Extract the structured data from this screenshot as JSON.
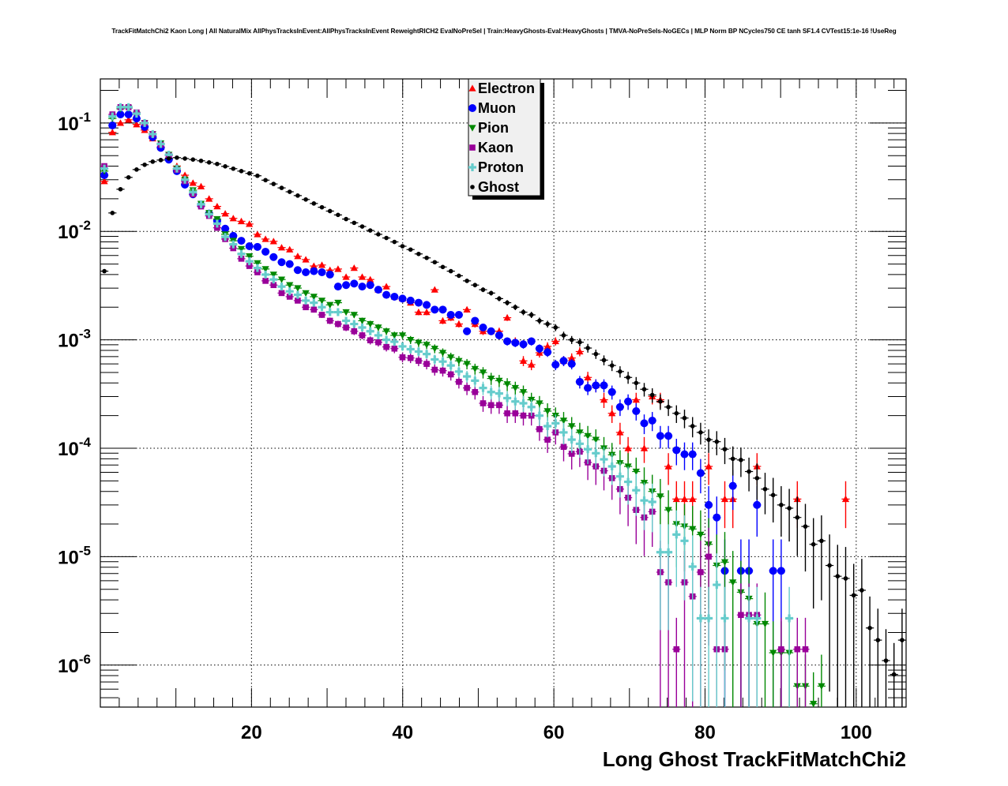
{
  "title": "TrackFitMatchChi2 Kaon Long | All NaturalMix AllPhysTracksInEvent:AllPhysTracksInEvent ReweightRICH2 EvalNoPreSel | Train:HeavyGhosts-Eval:HeavyGhosts | TMVA-NoPreSels-NoGECs | MLP Norm BP NCycles750 CE tanh SF1.4 CVTest15:1e-16 !UseReg",
  "chart_data": {
    "type": "scatter",
    "title": "TrackFitMatchChi2 Kaon Long | All NaturalMix AllPhysTracksInEvent:AllPhysTracksInEvent ReweightRICH2 EvalNoPreSel | Train:HeavyGhosts-Eval:HeavyGhosts | TMVA-NoPreSels-NoGECs | MLP Norm BP NCycles750 CE tanh SF1.4 CVTest15:1e-16 !UseReg",
    "xlabel": "Long Ghost TrackFitMatchChi2",
    "ylabel": "",
    "xlim": [
      0,
      106.6
    ],
    "ylim": [
      4.1e-07,
      0.255
    ],
    "yscale": "log",
    "bin_width": 1.066,
    "grid": true,
    "legend_position": "top-center",
    "x_ticks": [
      "20",
      "40",
      "60",
      "80",
      "100"
    ],
    "x_tick_values": [
      20,
      40,
      60,
      80,
      100
    ],
    "y_ticks": [
      {
        "value": 0.1,
        "base": "10",
        "exp": "-1"
      },
      {
        "value": 0.01,
        "base": "10",
        "exp": "-2"
      },
      {
        "value": 0.001,
        "base": "10",
        "exp": "-3"
      },
      {
        "value": 0.0001,
        "base": "10",
        "exp": "-4"
      },
      {
        "value": 1e-05,
        "base": "10",
        "exp": "-5"
      },
      {
        "value": 1e-06,
        "base": "10",
        "exp": "-6"
      }
    ],
    "series": [
      {
        "name": "Electron",
        "color": "#ff0000",
        "marker": "triangle-up",
        "values": [
          0.029,
          0.082,
          0.1,
          0.107,
          0.097,
          0.086,
          0.072,
          0.06,
          0.051,
          0.04,
          0.033,
          0.028,
          0.026,
          0.02,
          0.017,
          0.0146,
          0.0132,
          0.0124,
          0.0117,
          0.0094,
          0.0085,
          0.0081,
          0.0071,
          0.0068,
          0.0059,
          0.0055,
          0.0048,
          0.0049,
          0.0044,
          0.0045,
          0.0038,
          0.0046,
          0.0038,
          0.0036,
          0.0029,
          0.0031,
          0.0025,
          0.0024,
          0.0022,
          0.0018,
          0.0018,
          0.0029,
          0.0015,
          0.0016,
          0.0014,
          0.0019,
          0.0014,
          0.0012,
          0.0012,
          0.0012,
          0.0016,
          0.00097,
          0.00064,
          0.00059,
          0.00076,
          0.00087,
          0.00097,
          0.00064,
          0.00068,
          0.00078,
          0.00045,
          0.00038,
          0.00028,
          0.00021,
          0.00014,
          0.0001,
          0.00028,
          0.0001,
          0.0003,
          0.00028,
          6.8e-05,
          3.4e-05,
          3.4e-05,
          3.4e-05,
          null,
          6.8e-05,
          null,
          3.4e-05,
          3.4e-05,
          null,
          null,
          6.8e-05,
          null,
          null,
          null,
          null,
          3.4e-05,
          null,
          null,
          null,
          null,
          null,
          3.4e-05,
          null,
          null,
          null,
          null,
          null,
          null,
          null
        ]
      },
      {
        "name": "Muon",
        "color": "#0000ff",
        "marker": "circle",
        "values": [
          0.033,
          0.095,
          0.12,
          0.12,
          0.11,
          0.092,
          0.074,
          0.059,
          0.046,
          0.036,
          0.027,
          0.022,
          0.0175,
          0.0146,
          0.0125,
          0.0106,
          0.0091,
          0.0082,
          0.0073,
          0.0072,
          0.0065,
          0.0058,
          0.0052,
          0.005,
          0.0044,
          0.0042,
          0.0043,
          0.0042,
          0.004,
          0.0031,
          0.0032,
          0.0033,
          0.0031,
          0.0032,
          0.0029,
          0.0026,
          0.0025,
          0.0024,
          0.0023,
          0.0022,
          0.0021,
          0.0019,
          0.0019,
          0.0017,
          0.0017,
          0.0012,
          0.0015,
          0.0013,
          0.0012,
          0.0011,
          0.00097,
          0.00094,
          0.00091,
          0.00097,
          0.00083,
          0.00077,
          0.00059,
          0.00064,
          0.0006,
          0.00041,
          0.00036,
          0.00038,
          0.00038,
          0.00033,
          0.00024,
          0.00027,
          0.00022,
          0.00017,
          0.00018,
          0.00013,
          0.00013,
          9.6e-05,
          8.8e-05,
          8.8e-05,
          5.9e-05,
          3e-05,
          2.3e-05,
          7.4e-06,
          4.5e-05,
          7.4e-06,
          7.4e-06,
          3e-05,
          null,
          7.4e-06,
          7.4e-06,
          null,
          null,
          null,
          null,
          null,
          null,
          null,
          null,
          null,
          null,
          null,
          null,
          null,
          null,
          null
        ]
      },
      {
        "name": "Pion",
        "color": "#008800",
        "marker": "triangle-down",
        "values": [
          0.036,
          0.11,
          0.135,
          0.137,
          0.12,
          0.1,
          0.079,
          0.065,
          0.051,
          0.038,
          0.03,
          0.024,
          0.018,
          0.0148,
          0.013,
          0.0094,
          0.0082,
          0.0069,
          0.0059,
          0.0051,
          0.0045,
          0.004,
          0.0036,
          0.0032,
          0.003,
          0.0027,
          0.0025,
          0.0023,
          0.0021,
          0.0022,
          0.0018,
          0.0017,
          0.0015,
          0.0014,
          0.0013,
          0.0012,
          0.0011,
          0.0011,
          0.001,
          0.00094,
          0.0009,
          0.00083,
          0.00076,
          0.00069,
          0.00064,
          0.0006,
          0.00054,
          0.0005,
          0.00044,
          0.00042,
          0.00039,
          0.00036,
          0.00033,
          0.00028,
          0.00026,
          0.00022,
          0.0002,
          0.00018,
          0.00016,
          0.00014,
          0.00013,
          0.00012,
          0.0001,
          8.7e-05,
          7.3e-05,
          6.8e-05,
          6.1e-05,
          4.8e-05,
          4e-05,
          3.6e-05,
          2.7e-05,
          2e-05,
          1.9e-05,
          1.8e-05,
          1.6e-05,
          1.3e-05,
          8.3e-06,
          8.9e-06,
          5.8e-06,
          4.7e-06,
          4.1e-06,
          2.4e-06,
          2.4e-06,
          1.3e-06,
          1.3e-06,
          1.3e-06,
          6.4e-07,
          6.4e-07,
          4.4e-07,
          6.4e-07,
          null,
          null,
          null,
          null,
          null,
          null,
          null,
          null,
          null,
          null
        ]
      },
      {
        "name": "Kaon",
        "color": "#990099",
        "marker": "square",
        "values": [
          0.04,
          0.12,
          0.14,
          0.14,
          0.125,
          0.1,
          0.079,
          0.063,
          0.05,
          0.037,
          0.029,
          0.022,
          0.017,
          0.0139,
          0.0108,
          0.0085,
          0.007,
          0.0056,
          0.0048,
          0.0042,
          0.0035,
          0.0032,
          0.0027,
          0.0025,
          0.0023,
          0.002,
          0.0019,
          0.0017,
          0.0015,
          0.0014,
          0.0013,
          0.0012,
          0.0011,
          0.00099,
          0.00095,
          0.00086,
          0.00083,
          0.00069,
          0.00068,
          0.00064,
          0.0006,
          0.00053,
          0.00052,
          0.00048,
          0.00041,
          0.00036,
          0.00033,
          0.00026,
          0.00025,
          0.00025,
          0.00021,
          0.00021,
          0.0002,
          0.0002,
          0.00015,
          0.00012,
          0.00014,
          0.000103,
          8.9e-05,
          9.3e-05,
          7.4e-05,
          6.8e-05,
          6.2e-05,
          5.3e-05,
          4.2e-05,
          3.5e-05,
          2.7e-05,
          2.3e-05,
          2.6e-05,
          7.2e-06,
          5.8e-06,
          1.4e-06,
          5.8e-06,
          4.3e-06,
          7.2e-06,
          1e-05,
          1.4e-06,
          1.4e-06,
          null,
          2.9e-06,
          2.9e-06,
          2.9e-06,
          null,
          null,
          1.4e-06,
          null,
          1.4e-06,
          1.4e-06,
          null,
          null,
          null,
          null,
          null,
          null,
          null,
          null,
          null,
          null,
          null,
          null
        ]
      },
      {
        "name": "Proton",
        "color": "#66cccc",
        "marker": "cross",
        "values": [
          0.038,
          0.115,
          0.14,
          0.14,
          0.122,
          0.1,
          0.079,
          0.064,
          0.051,
          0.038,
          0.03,
          0.023,
          0.0178,
          0.0144,
          0.0118,
          0.0089,
          0.0076,
          0.0062,
          0.0053,
          0.0046,
          0.004,
          0.0036,
          0.0031,
          0.0028,
          0.0026,
          0.0023,
          0.0022,
          0.002,
          0.0018,
          0.0018,
          0.0015,
          0.0014,
          0.0013,
          0.0012,
          0.0011,
          0.001,
          0.00096,
          0.00087,
          0.00082,
          0.00078,
          0.00074,
          0.00066,
          0.00063,
          0.00058,
          0.00051,
          0.00046,
          0.00042,
          0.00036,
          0.00033,
          0.00032,
          0.00029,
          0.00027,
          0.00026,
          0.00024,
          0.0002,
          0.00016,
          0.00017,
          0.00014,
          0.00012,
          0.00011,
          9.8e-05,
          9e-05,
          7.9e-05,
          6.8e-05,
          5.5e-05,
          4.9e-05,
          4.1e-05,
          3.3e-05,
          3.2e-05,
          1.1e-05,
          1.1e-05,
          1.6e-05,
          1.4e-05,
          8.1e-06,
          2.7e-06,
          2.7e-06,
          5.5e-06,
          2.7e-06,
          null,
          null,
          2.7e-06,
          2.7e-06,
          null,
          null,
          null,
          2.7e-06,
          null,
          null,
          null,
          null,
          null,
          null,
          null,
          null,
          null,
          null,
          null,
          null,
          null,
          null
        ]
      },
      {
        "name": "Ghost",
        "color": "#000000",
        "marker": "small-circle",
        "values": [
          0.0043,
          0.0148,
          0.0245,
          0.0315,
          0.0372,
          0.0412,
          0.044,
          0.0455,
          0.0471,
          0.0479,
          0.047,
          0.046,
          0.0448,
          0.0433,
          0.0419,
          0.0398,
          0.0379,
          0.036,
          0.0343,
          0.0326,
          0.0297,
          0.0274,
          0.0252,
          0.0232,
          0.0214,
          0.0197,
          0.0181,
          0.0167,
          0.0154,
          0.0142,
          0.013,
          0.012,
          0.0111,
          0.0102,
          0.0094,
          0.0087,
          0.008,
          0.0073,
          0.0068,
          0.0062,
          0.0057,
          0.0052,
          0.0047,
          0.0043,
          0.0039,
          0.0035,
          0.0032,
          0.0029,
          0.0027,
          0.0024,
          0.0022,
          0.002,
          0.0018,
          0.0017,
          0.0015,
          0.0014,
          0.0013,
          0.0011,
          0.001,
          0.00095,
          0.00084,
          0.00074,
          0.00065,
          0.00058,
          0.00051,
          0.00045,
          0.0004,
          0.00035,
          0.00031,
          0.00027,
          0.00024,
          0.00021,
          0.00019,
          0.00016,
          0.00014,
          0.00012,
          0.000115,
          9.8e-05,
          8e-05,
          7.8e-05,
          6.1e-05,
          5.3e-05,
          4.2e-05,
          3.7e-05,
          3e-05,
          2.8e-05,
          2.3e-05,
          1.9e-05,
          1.3e-05,
          1.4e-05,
          8.3e-06,
          6.6e-06,
          6.3e-06,
          4.4e-06,
          4.9e-06,
          2.2e-06,
          1.7e-06,
          1.1e-06,
          8.2e-07,
          1.7e-06
        ]
      }
    ]
  }
}
